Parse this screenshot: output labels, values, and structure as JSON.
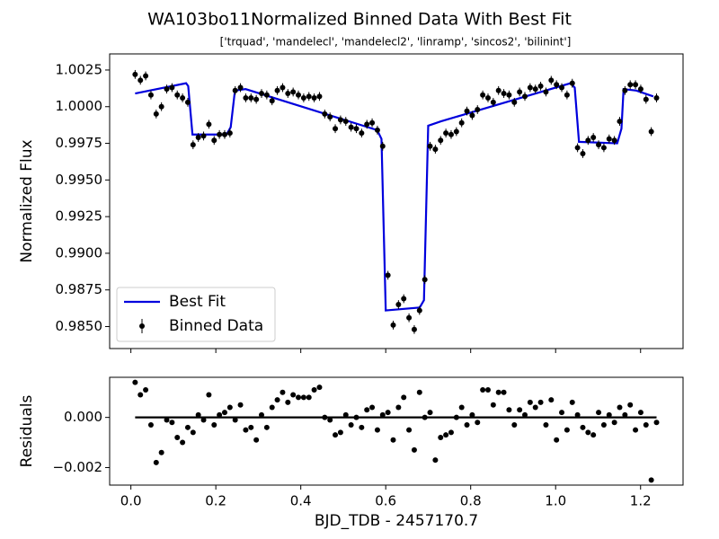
{
  "chart_data": [
    {
      "type": "scatter",
      "title": "WA103bo11Normalized Binned Data With Best Fit",
      "subtitle": "['trquad', 'mandelecl', 'mandelecl2', 'linramp', 'sincos2', 'bilinint']",
      "ylabel": "Normalized Flux",
      "ylim": [
        0.9835,
        1.0036
      ],
      "yticks": [
        {
          "value": 0.985,
          "label": "0.9850"
        },
        {
          "value": 0.9875,
          "label": "0.9875"
        },
        {
          "value": 0.99,
          "label": "0.9900"
        },
        {
          "value": 0.9925,
          "label": "0.9925"
        },
        {
          "value": 0.995,
          "label": "0.9950"
        },
        {
          "value": 0.9975,
          "label": "0.9975"
        },
        {
          "value": 1,
          "label": "1.0000"
        },
        {
          "value": 1.0025,
          "label": "1.0025"
        }
      ],
      "legend": "lower left",
      "series": [
        {
          "name": "Best Fit",
          "type": "line",
          "color": "#0000dd",
          "x": [
            0.01,
            0.13,
            0.135,
            0.145,
            0.225,
            0.235,
            0.245,
            0.27,
            0.58,
            0.59,
            0.6,
            0.68,
            0.69,
            0.7,
            0.73,
            1.035,
            1.045,
            1.055,
            1.145,
            1.155,
            1.16,
            1.19,
            1.23
          ],
          "values": [
            1.0009,
            1.0016,
            1.0014,
            0.9981,
            0.9981,
            0.9986,
            1.0011,
            1.0012,
            0.9984,
            0.9978,
            0.9861,
            0.9863,
            0.9868,
            0.9987,
            0.999,
            1.0016,
            1.0013,
            0.9976,
            0.9975,
            0.9985,
            1.0012,
            1.0011,
            1.0007
          ]
        },
        {
          "name": "Binned Data",
          "type": "errorbar",
          "color": "#000000",
          "yerr": 0.0003,
          "x": [
            0.01,
            0.0224,
            0.0348,
            0.0472,
            0.0596,
            0.072,
            0.0844,
            0.0968,
            0.1092,
            0.1216,
            0.134,
            0.1464,
            0.1588,
            0.1712,
            0.1836,
            0.196,
            0.2084,
            0.2208,
            0.2332,
            0.2456,
            0.258,
            0.2704,
            0.2828,
            0.2952,
            0.3076,
            0.32,
            0.3324,
            0.3448,
            0.3572,
            0.3696,
            0.382,
            0.3944,
            0.4068,
            0.4192,
            0.4316,
            0.444,
            0.4564,
            0.4688,
            0.4812,
            0.4936,
            0.506,
            0.5184,
            0.5308,
            0.5432,
            0.5556,
            0.568,
            0.5804,
            0.5928,
            0.6052,
            0.6176,
            0.63,
            0.6424,
            0.6548,
            0.6672,
            0.6796,
            0.692,
            0.7044,
            0.7168,
            0.7292,
            0.7416,
            0.754,
            0.7664,
            0.7788,
            0.7912,
            0.8036,
            0.816,
            0.8284,
            0.8408,
            0.8532,
            0.8656,
            0.878,
            0.8904,
            0.9028,
            0.9152,
            0.9276,
            0.94,
            0.9524,
            0.9648,
            0.9772,
            0.9896,
            1.002,
            1.0144,
            1.0268,
            1.0392,
            1.0516,
            1.064,
            1.0764,
            1.0888,
            1.1012,
            1.1136,
            1.126,
            1.1384,
            1.1508,
            1.1632,
            1.1756,
            1.188,
            1.2004,
            1.2128,
            1.2252,
            1.2376
          ],
          "values": [
            1.0022,
            1.0018,
            1.0021,
            1.0008,
            0.9995,
            1.0,
            1.0012,
            1.0013,
            1.0008,
            1.0006,
            1.0003,
            0.9974,
            0.9979,
            0.998,
            0.9988,
            0.9977,
            0.9981,
            0.9981,
            0.9982,
            1.0011,
            1.0013,
            1.0006,
            1.0006,
            1.0005,
            1.0009,
            1.0008,
            1.0004,
            1.0011,
            1.0013,
            1.0009,
            1.001,
            1.0008,
            1.0006,
            1.0007,
            1.0006,
            1.0007,
            0.9995,
            0.9993,
            0.9985,
            0.9991,
            0.999,
            0.9986,
            0.9985,
            0.9982,
            0.9988,
            0.9989,
            0.9984,
            0.9973,
            0.9885,
            0.9851,
            0.9865,
            0.9869,
            0.9856,
            0.9848,
            0.9861,
            0.9882,
            0.9973,
            0.9971,
            0.9977,
            0.9982,
            0.9981,
            0.9983,
            0.9989,
            0.9997,
            0.9994,
            0.9998,
            1.0008,
            1.0006,
            1.0003,
            1.0011,
            1.0009,
            1.0008,
            1.0003,
            1.001,
            1.0007,
            1.0013,
            1.0012,
            1.0014,
            1.001,
            1.0018,
            1.0015,
            1.0013,
            1.0008,
            1.0016,
            0.9972,
            0.9968,
            0.9977,
            0.9979,
            0.9974,
            0.9972,
            0.9978,
            0.9977,
            0.999,
            1.0011,
            1.0015,
            1.0015,
            1.0012,
            1.0005,
            0.9983,
            1.0006
          ]
        }
      ]
    },
    {
      "type": "scatter",
      "ylabel": "Residuals",
      "xlabel": "BJD_TDB - 2457170.7",
      "xlim": [
        -0.05,
        1.3
      ],
      "xticks": [
        {
          "value": 0,
          "label": "0.0"
        },
        {
          "value": 0.2,
          "label": "0.2"
        },
        {
          "value": 0.4,
          "label": "0.4"
        },
        {
          "value": 0.6,
          "label": "0.6"
        },
        {
          "value": 0.8,
          "label": "0.8"
        },
        {
          "value": 1,
          "label": "1.0"
        },
        {
          "value": 1.2,
          "label": "1.2"
        }
      ],
      "ylim": [
        -0.0027,
        0.0016
      ],
      "yticks": [
        {
          "value": -0.002,
          "label": "−0.002"
        },
        {
          "value": 0,
          "label": "0.000"
        }
      ],
      "color": "#000000",
      "values": [
        0.0014,
        0.0009,
        0.0011,
        -0.0003,
        -0.0018,
        -0.0014,
        -0.0001,
        -0.0002,
        -0.0008,
        -0.001,
        -0.0004,
        -0.0006,
        0.0001,
        -0.0001,
        0.0009,
        -0.0003,
        0.0001,
        0.0002,
        0.0004,
        -0.0001,
        0.0005,
        -0.0005,
        -0.0004,
        -0.0009,
        0.0001,
        -0.0004,
        0.0004,
        0.0007,
        0.001,
        0.0006,
        0.0009,
        0.0008,
        0.0008,
        0.0008,
        0.0011,
        0.0012,
        0.0,
        -0.0001,
        -0.0007,
        -0.0006,
        0.0001,
        -0.0003,
        0.0,
        -0.0004,
        0.0003,
        0.0004,
        -0.0005,
        0.0001,
        0.0002,
        -0.0009,
        0.0004,
        0.0008,
        -0.0005,
        -0.0013,
        0.001,
        0.0,
        0.0002,
        -0.0017,
        -0.0008,
        -0.0007,
        -0.0006,
        0.0,
        0.0004,
        -0.0003,
        0.0001,
        -0.0002,
        0.0011,
        0.0011,
        0.0005,
        0.001,
        0.001,
        0.0003,
        -0.0003,
        0.0003,
        0.0001,
        0.0006,
        0.0004,
        0.0006,
        -0.0003,
        0.0007,
        -0.0009,
        0.0002,
        -0.0005,
        0.0006,
        0.0001,
        -0.0004,
        -0.0006,
        -0.0007,
        0.0002,
        -0.0003,
        0.0001,
        -0.0002,
        0.0004,
        0.0001,
        0.0005,
        -0.0005,
        0.0002,
        -0.0003,
        -0.0025,
        -0.0002
      ]
    }
  ]
}
